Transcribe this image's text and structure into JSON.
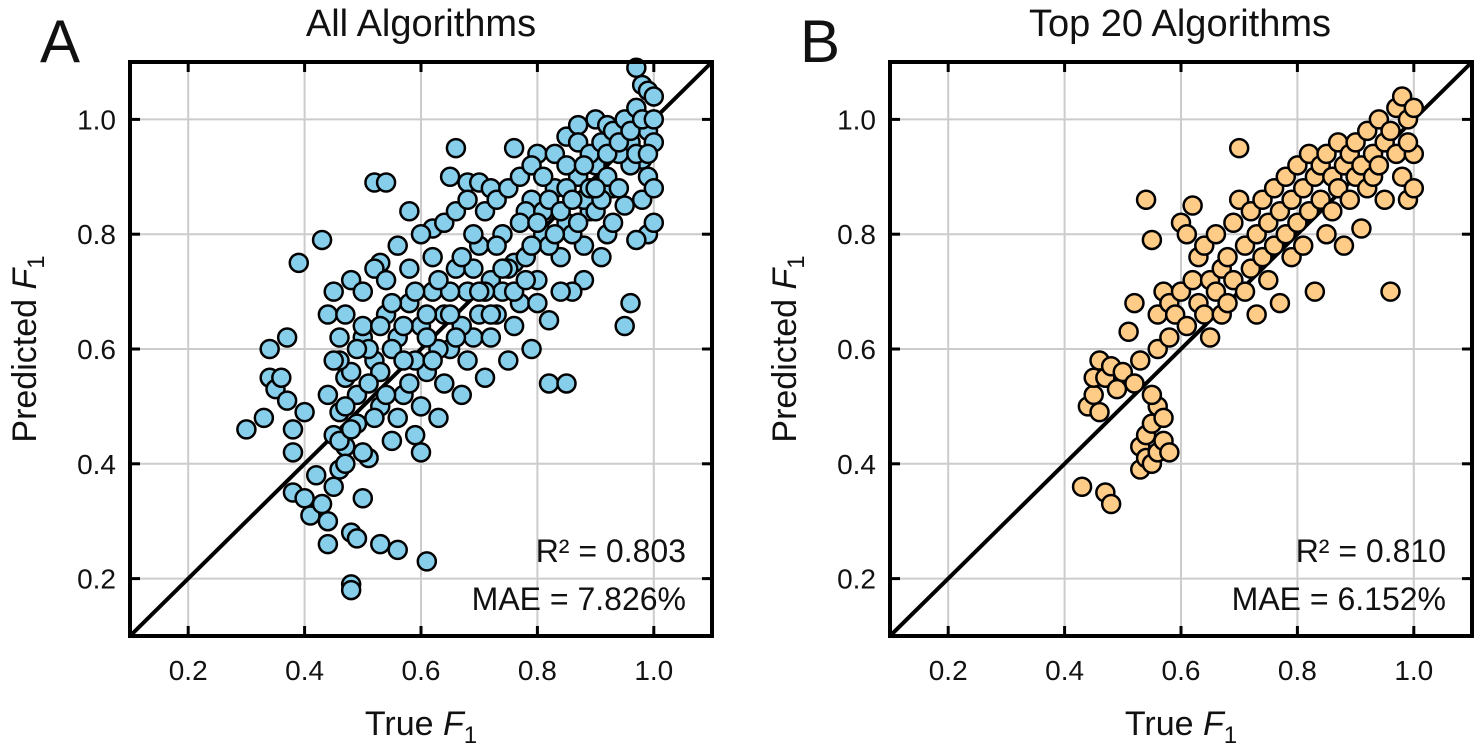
{
  "chart_data": [
    {
      "type": "scatter",
      "panel_letter": "A",
      "title": "All Algorithms",
      "xlabel": "True F1",
      "ylabel": "Predicted F1",
      "xlim": [
        0.1,
        1.1
      ],
      "ylim": [
        0.1,
        1.1
      ],
      "xticks": [
        "0.2",
        "0.4",
        "0.6",
        "0.8",
        "1.0"
      ],
      "yticks": [
        "0.2",
        "0.4",
        "0.6",
        "0.8",
        "1.0"
      ],
      "grid": true,
      "identity_line": true,
      "marker_color": "#87CEEB",
      "stats": {
        "r2": "R² = 0.803",
        "mae": "MAE = 7.826%"
      },
      "points": [
        [
          0.3,
          0.46
        ],
        [
          0.33,
          0.48
        ],
        [
          0.34,
          0.6
        ],
        [
          0.34,
          0.55
        ],
        [
          0.35,
          0.53
        ],
        [
          0.36,
          0.55
        ],
        [
          0.37,
          0.62
        ],
        [
          0.37,
          0.51
        ],
        [
          0.38,
          0.42
        ],
        [
          0.38,
          0.35
        ],
        [
          0.38,
          0.46
        ],
        [
          0.39,
          0.75
        ],
        [
          0.4,
          0.34
        ],
        [
          0.4,
          0.49
        ],
        [
          0.41,
          0.31
        ],
        [
          0.42,
          0.38
        ],
        [
          0.43,
          0.33
        ],
        [
          0.43,
          0.79
        ],
        [
          0.44,
          0.3
        ],
        [
          0.44,
          0.26
        ],
        [
          0.45,
          0.36
        ],
        [
          0.46,
          0.39
        ],
        [
          0.46,
          0.49
        ],
        [
          0.47,
          0.43
        ],
        [
          0.47,
          0.55
        ],
        [
          0.48,
          0.28
        ],
        [
          0.48,
          0.19
        ],
        [
          0.48,
          0.18
        ],
        [
          0.49,
          0.27
        ],
        [
          0.5,
          0.34
        ],
        [
          0.5,
          0.62
        ],
        [
          0.52,
          0.89
        ],
        [
          0.53,
          0.75
        ],
        [
          0.53,
          0.26
        ],
        [
          0.54,
          0.89
        ],
        [
          0.56,
          0.25
        ],
        [
          0.58,
          0.84
        ],
        [
          0.6,
          0.42
        ],
        [
          0.61,
          0.23
        ],
        [
          0.62,
          0.81
        ],
        [
          0.65,
          0.9
        ],
        [
          0.66,
          0.95
        ],
        [
          0.68,
          0.89
        ],
        [
          0.7,
          0.89
        ],
        [
          0.72,
          0.88
        ],
        [
          0.76,
          0.95
        ],
        [
          0.79,
          0.86
        ],
        [
          0.8,
          0.94
        ],
        [
          0.82,
          0.54
        ],
        [
          0.85,
          0.54
        ],
        [
          0.85,
          0.97
        ],
        [
          0.87,
          0.99
        ],
        [
          0.88,
          0.72
        ],
        [
          0.9,
          1.0
        ],
        [
          0.92,
          0.99
        ],
        [
          0.95,
          0.64
        ],
        [
          0.96,
          0.68
        ],
        [
          0.97,
          1.09
        ],
        [
          0.98,
          1.06
        ],
        [
          0.99,
          1.05
        ],
        [
          1.0,
          1.04
        ],
        [
          0.99,
          0.98
        ],
        [
          1.0,
          0.96
        ],
        [
          0.98,
          0.93
        ],
        [
          0.96,
          0.92
        ],
        [
          0.99,
          0.8
        ],
        [
          1.0,
          0.82
        ],
        [
          0.97,
          0.79
        ],
        [
          0.95,
          0.85
        ],
        [
          0.93,
          0.88
        ],
        [
          0.92,
          0.8
        ],
        [
          0.91,
          0.76
        ],
        [
          0.9,
          0.92
        ],
        [
          0.89,
          0.84
        ],
        [
          0.88,
          0.78
        ],
        [
          0.87,
          0.9
        ],
        [
          0.86,
          0.7
        ],
        [
          0.85,
          0.82
        ],
        [
          0.84,
          0.76
        ],
        [
          0.83,
          0.88
        ],
        [
          0.82,
          0.65
        ],
        [
          0.81,
          0.8
        ],
        [
          0.8,
          0.72
        ],
        [
          0.79,
          0.6
        ],
        [
          0.78,
          0.84
        ],
        [
          0.77,
          0.68
        ],
        [
          0.76,
          0.75
        ],
        [
          0.75,
          0.58
        ],
        [
          0.74,
          0.8
        ],
        [
          0.73,
          0.66
        ],
        [
          0.72,
          0.72
        ],
        [
          0.71,
          0.55
        ],
        [
          0.7,
          0.78
        ],
        [
          0.69,
          0.62
        ],
        [
          0.68,
          0.7
        ],
        [
          0.67,
          0.52
        ],
        [
          0.66,
          0.74
        ],
        [
          0.65,
          0.6
        ],
        [
          0.64,
          0.66
        ],
        [
          0.63,
          0.48
        ],
        [
          0.62,
          0.7
        ],
        [
          0.61,
          0.56
        ],
        [
          0.6,
          0.64
        ],
        [
          0.59,
          0.45
        ],
        [
          0.58,
          0.68
        ],
        [
          0.57,
          0.52
        ],
        [
          0.56,
          0.62
        ],
        [
          0.55,
          0.44
        ],
        [
          0.54,
          0.66
        ],
        [
          0.53,
          0.5
        ],
        [
          0.52,
          0.58
        ],
        [
          0.51,
          0.41
        ],
        [
          0.5,
          0.64
        ],
        [
          0.49,
          0.47
        ],
        [
          0.48,
          0.56
        ],
        [
          0.47,
          0.4
        ],
        [
          0.46,
          0.62
        ],
        [
          0.45,
          0.45
        ],
        [
          0.44,
          0.52
        ],
        [
          0.44,
          0.66
        ],
        [
          0.45,
          0.7
        ],
        [
          0.46,
          0.58
        ],
        [
          0.47,
          0.66
        ],
        [
          0.48,
          0.72
        ],
        [
          0.49,
          0.52
        ],
        [
          0.5,
          0.7
        ],
        [
          0.51,
          0.6
        ],
        [
          0.52,
          0.74
        ],
        [
          0.53,
          0.56
        ],
        [
          0.54,
          0.72
        ],
        [
          0.55,
          0.6
        ],
        [
          0.56,
          0.78
        ],
        [
          0.57,
          0.64
        ],
        [
          0.58,
          0.74
        ],
        [
          0.59,
          0.58
        ],
        [
          0.6,
          0.8
        ],
        [
          0.61,
          0.66
        ],
        [
          0.62,
          0.76
        ],
        [
          0.63,
          0.6
        ],
        [
          0.64,
          0.82
        ],
        [
          0.65,
          0.7
        ],
        [
          0.66,
          0.84
        ],
        [
          0.67,
          0.64
        ],
        [
          0.68,
          0.86
        ],
        [
          0.69,
          0.74
        ],
        [
          0.7,
          0.66
        ],
        [
          0.71,
          0.84
        ],
        [
          0.72,
          0.62
        ],
        [
          0.73,
          0.86
        ],
        [
          0.74,
          0.7
        ],
        [
          0.75,
          0.88
        ],
        [
          0.76,
          0.64
        ],
        [
          0.77,
          0.9
        ],
        [
          0.78,
          0.76
        ],
        [
          0.79,
          0.92
        ],
        [
          0.8,
          0.68
        ],
        [
          0.81,
          0.9
        ],
        [
          0.82,
          0.78
        ],
        [
          0.83,
          0.94
        ],
        [
          0.84,
          0.7
        ],
        [
          0.85,
          0.88
        ],
        [
          0.86,
          0.8
        ],
        [
          0.87,
          0.96
        ],
        [
          0.88,
          0.86
        ],
        [
          0.89,
          0.94
        ],
        [
          0.9,
          0.84
        ],
        [
          0.91,
          0.96
        ],
        [
          0.92,
          0.9
        ],
        [
          0.93,
          0.98
        ],
        [
          0.94,
          0.88
        ],
        [
          0.95,
          1.0
        ],
        [
          0.96,
          0.96
        ],
        [
          0.97,
          1.02
        ],
        [
          0.98,
          0.86
        ],
        [
          0.99,
          0.9
        ],
        [
          1.0,
          0.88
        ],
        [
          0.94,
          0.94
        ],
        [
          0.93,
          0.82
        ],
        [
          0.91,
          0.86
        ],
        [
          0.89,
          0.88
        ],
        [
          0.87,
          0.82
        ],
        [
          0.85,
          0.92
        ],
        [
          0.83,
          0.8
        ],
        [
          0.81,
          0.84
        ],
        [
          0.79,
          0.78
        ],
        [
          0.77,
          0.82
        ],
        [
          0.75,
          0.74
        ],
        [
          0.73,
          0.78
        ],
        [
          0.71,
          0.7
        ],
        [
          0.69,
          0.8
        ],
        [
          0.67,
          0.76
        ],
        [
          0.65,
          0.66
        ],
        [
          0.63,
          0.72
        ],
        [
          0.61,
          0.62
        ],
        [
          0.59,
          0.7
        ],
        [
          0.57,
          0.58
        ],
        [
          0.55,
          0.68
        ],
        [
          0.53,
          0.64
        ],
        [
          0.51,
          0.54
        ],
        [
          0.49,
          0.6
        ],
        [
          0.47,
          0.5
        ],
        [
          0.45,
          0.58
        ],
        [
          0.46,
          0.44
        ],
        [
          0.48,
          0.46
        ],
        [
          0.5,
          0.42
        ],
        [
          0.52,
          0.48
        ],
        [
          0.54,
          0.52
        ],
        [
          0.56,
          0.48
        ],
        [
          0.58,
          0.54
        ],
        [
          0.6,
          0.5
        ],
        [
          0.62,
          0.58
        ],
        [
          0.64,
          0.54
        ],
        [
          0.66,
          0.62
        ],
        [
          0.68,
          0.58
        ],
        [
          0.7,
          0.7
        ],
        [
          0.72,
          0.66
        ],
        [
          0.74,
          0.74
        ],
        [
          0.76,
          0.7
        ],
        [
          0.78,
          0.72
        ],
        [
          0.8,
          0.82
        ],
        [
          0.82,
          0.86
        ],
        [
          0.84,
          0.84
        ],
        [
          0.86,
          0.86
        ],
        [
          0.88,
          0.92
        ],
        [
          0.9,
          0.88
        ],
        [
          0.92,
          0.94
        ],
        [
          0.94,
          0.96
        ],
        [
          0.96,
          0.98
        ],
        [
          0.98,
          1.0
        ],
        [
          1.0,
          1.0
        ],
        [
          0.97,
          0.94
        ],
        [
          0.99,
          0.94
        ]
      ]
    },
    {
      "type": "scatter",
      "panel_letter": "B",
      "title": "Top 20 Algorithms",
      "xlabel": "True F1",
      "ylabel": "Predicted F1",
      "xlim": [
        0.1,
        1.1
      ],
      "ylim": [
        0.1,
        1.1
      ],
      "xticks": [
        "0.2",
        "0.4",
        "0.6",
        "0.8",
        "1.0"
      ],
      "yticks": [
        "0.2",
        "0.4",
        "0.6",
        "0.8",
        "1.0"
      ],
      "grid": true,
      "identity_line": true,
      "marker_color": "#FFCC88",
      "stats": {
        "r2": "R² = 0.810",
        "mae": "MAE = 6.152%"
      },
      "points": [
        [
          0.43,
          0.36
        ],
        [
          0.47,
          0.35
        ],
        [
          0.48,
          0.33
        ],
        [
          0.44,
          0.5
        ],
        [
          0.45,
          0.52
        ],
        [
          0.45,
          0.55
        ],
        [
          0.46,
          0.58
        ],
        [
          0.47,
          0.55
        ],
        [
          0.48,
          0.57
        ],
        [
          0.49,
          0.53
        ],
        [
          0.46,
          0.49
        ],
        [
          0.5,
          0.56
        ],
        [
          0.51,
          0.63
        ],
        [
          0.52,
          0.54
        ],
        [
          0.52,
          0.68
        ],
        [
          0.53,
          0.39
        ],
        [
          0.53,
          0.43
        ],
        [
          0.54,
          0.45
        ],
        [
          0.54,
          0.41
        ],
        [
          0.55,
          0.4
        ],
        [
          0.55,
          0.47
        ],
        [
          0.56,
          0.5
        ],
        [
          0.56,
          0.42
        ],
        [
          0.57,
          0.44
        ],
        [
          0.58,
          0.42
        ],
        [
          0.57,
          0.48
        ],
        [
          0.55,
          0.52
        ],
        [
          0.53,
          0.58
        ],
        [
          0.54,
          0.86
        ],
        [
          0.55,
          0.79
        ],
        [
          0.56,
          0.6
        ],
        [
          0.56,
          0.66
        ],
        [
          0.57,
          0.7
        ],
        [
          0.58,
          0.68
        ],
        [
          0.58,
          0.62
        ],
        [
          0.59,
          0.66
        ],
        [
          0.6,
          0.82
        ],
        [
          0.6,
          0.7
        ],
        [
          0.61,
          0.64
        ],
        [
          0.61,
          0.8
        ],
        [
          0.62,
          0.85
        ],
        [
          0.62,
          0.72
        ],
        [
          0.63,
          0.68
        ],
        [
          0.63,
          0.76
        ],
        [
          0.64,
          0.78
        ],
        [
          0.64,
          0.66
        ],
        [
          0.65,
          0.72
        ],
        [
          0.65,
          0.62
        ],
        [
          0.66,
          0.7
        ],
        [
          0.66,
          0.8
        ],
        [
          0.67,
          0.66
        ],
        [
          0.67,
          0.74
        ],
        [
          0.68,
          0.76
        ],
        [
          0.68,
          0.68
        ],
        [
          0.69,
          0.82
        ],
        [
          0.69,
          0.72
        ],
        [
          0.7,
          0.95
        ],
        [
          0.7,
          0.86
        ],
        [
          0.71,
          0.78
        ],
        [
          0.71,
          0.7
        ],
        [
          0.72,
          0.84
        ],
        [
          0.72,
          0.74
        ],
        [
          0.73,
          0.8
        ],
        [
          0.73,
          0.66
        ],
        [
          0.74,
          0.86
        ],
        [
          0.74,
          0.76
        ],
        [
          0.75,
          0.82
        ],
        [
          0.75,
          0.72
        ],
        [
          0.76,
          0.88
        ],
        [
          0.76,
          0.78
        ],
        [
          0.77,
          0.84
        ],
        [
          0.77,
          0.68
        ],
        [
          0.78,
          0.9
        ],
        [
          0.78,
          0.8
        ],
        [
          0.79,
          0.86
        ],
        [
          0.79,
          0.76
        ],
        [
          0.8,
          0.92
        ],
        [
          0.8,
          0.82
        ],
        [
          0.81,
          0.88
        ],
        [
          0.81,
          0.78
        ],
        [
          0.82,
          0.94
        ],
        [
          0.82,
          0.84
        ],
        [
          0.83,
          0.9
        ],
        [
          0.83,
          0.7
        ],
        [
          0.84,
          0.92
        ],
        [
          0.84,
          0.86
        ],
        [
          0.85,
          0.94
        ],
        [
          0.85,
          0.8
        ],
        [
          0.86,
          0.9
        ],
        [
          0.86,
          0.84
        ],
        [
          0.87,
          0.96
        ],
        [
          0.87,
          0.88
        ],
        [
          0.88,
          0.92
        ],
        [
          0.88,
          0.78
        ],
        [
          0.89,
          0.94
        ],
        [
          0.89,
          0.86
        ],
        [
          0.9,
          0.96
        ],
        [
          0.9,
          0.9
        ],
        [
          0.91,
          0.92
        ],
        [
          0.91,
          0.81
        ],
        [
          0.92,
          0.98
        ],
        [
          0.92,
          0.88
        ],
        [
          0.93,
          0.94
        ],
        [
          0.93,
          0.9
        ],
        [
          0.94,
          1.0
        ],
        [
          0.94,
          0.92
        ],
        [
          0.95,
          0.96
        ],
        [
          0.95,
          0.86
        ],
        [
          0.96,
          0.7
        ],
        [
          0.96,
          0.98
        ],
        [
          0.97,
          1.02
        ],
        [
          0.97,
          0.94
        ],
        [
          0.98,
          1.04
        ],
        [
          0.98,
          0.9
        ],
        [
          0.99,
          1.0
        ],
        [
          0.99,
          0.86
        ],
        [
          1.0,
          1.02
        ],
        [
          1.0,
          0.94
        ],
        [
          1.0,
          0.88
        ],
        [
          0.99,
          0.96
        ]
      ]
    }
  ]
}
